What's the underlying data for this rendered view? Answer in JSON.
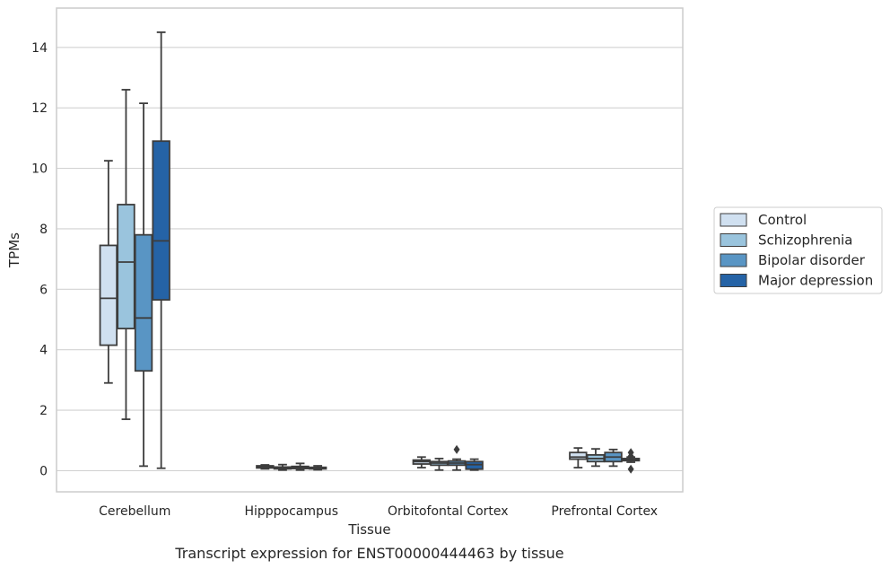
{
  "chart_data": {
    "type": "box",
    "title": "Transcript expression for ENST00000444463 by tissue",
    "xlabel": "Tissue",
    "ylabel": "TPMs",
    "ylim": [
      -0.7,
      15.3
    ],
    "yticks": [
      0,
      2,
      4,
      6,
      8,
      10,
      12,
      14
    ],
    "grid": "horizontal",
    "legend_position": "right",
    "categories": [
      "Cerebellum",
      "Hipppocampus",
      "Orbitofontal Cortex",
      "Prefrontal Cortex"
    ],
    "series": [
      {
        "name": "Control",
        "color": "#d0e0f0",
        "boxes": [
          {
            "whislo": 2.9,
            "q1": 4.15,
            "med": 5.7,
            "q3": 7.45,
            "whishi": 10.25,
            "fliers": []
          },
          {
            "whislo": 0.06,
            "q1": 0.09,
            "med": 0.13,
            "q3": 0.16,
            "whishi": 0.19,
            "fliers": []
          },
          {
            "whislo": 0.1,
            "q1": 0.22,
            "med": 0.3,
            "q3": 0.35,
            "whishi": 0.45,
            "fliers": []
          },
          {
            "whislo": 0.1,
            "q1": 0.38,
            "med": 0.45,
            "q3": 0.6,
            "whishi": 0.75,
            "fliers": []
          }
        ]
      },
      {
        "name": "Schizophrenia",
        "color": "#9ac4dd",
        "boxes": [
          {
            "whislo": 1.7,
            "q1": 4.7,
            "med": 6.9,
            "q3": 8.8,
            "whishi": 12.6,
            "fliers": []
          },
          {
            "whislo": 0.02,
            "q1": 0.06,
            "med": 0.09,
            "q3": 0.12,
            "whishi": 0.2,
            "fliers": []
          },
          {
            "whislo": 0.02,
            "q1": 0.18,
            "med": 0.25,
            "q3": 0.3,
            "whishi": 0.4,
            "fliers": []
          },
          {
            "whislo": 0.15,
            "q1": 0.3,
            "med": 0.4,
            "q3": 0.52,
            "whishi": 0.72,
            "fliers": []
          }
        ]
      },
      {
        "name": "Bipolar disorder",
        "color": "#5995c4",
        "boxes": [
          {
            "whislo": 0.15,
            "q1": 3.3,
            "med": 5.05,
            "q3": 7.8,
            "whishi": 12.15,
            "fliers": []
          },
          {
            "whislo": 0.02,
            "q1": 0.07,
            "med": 0.1,
            "q3": 0.14,
            "whishi": 0.24,
            "fliers": []
          },
          {
            "whislo": 0.02,
            "q1": 0.18,
            "med": 0.25,
            "q3": 0.32,
            "whishi": 0.38,
            "fliers": [
              0.7
            ]
          },
          {
            "whislo": 0.15,
            "q1": 0.3,
            "med": 0.45,
            "q3": 0.6,
            "whishi": 0.7,
            "fliers": []
          }
        ]
      },
      {
        "name": "Major depression",
        "color": "#2563a6",
        "boxes": [
          {
            "whislo": 0.08,
            "q1": 5.65,
            "med": 7.6,
            "q3": 10.9,
            "whishi": 14.5,
            "fliers": []
          },
          {
            "whislo": 0.03,
            "q1": 0.06,
            "med": 0.09,
            "q3": 0.11,
            "whishi": 0.16,
            "fliers": []
          },
          {
            "whislo": 0.02,
            "q1": 0.05,
            "med": 0.2,
            "q3": 0.3,
            "whishi": 0.38,
            "fliers": []
          },
          {
            "whislo": 0.28,
            "q1": 0.33,
            "med": 0.37,
            "q3": 0.4,
            "whishi": 0.45,
            "fliers": [
              0.05,
              0.48,
              0.6
            ]
          }
        ]
      }
    ]
  }
}
